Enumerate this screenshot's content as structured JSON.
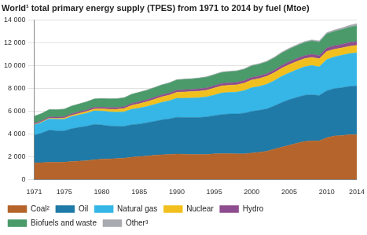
{
  "chart_data": {
    "type": "area",
    "title": "World¹ total primary energy supply (TPES) from 1971 to 2014 by fuel (Mtoe)",
    "stacked": true,
    "grid": true,
    "legend": "bottom",
    "x": [
      1971,
      1972,
      1973,
      1974,
      1975,
      1976,
      1977,
      1978,
      1979,
      1980,
      1981,
      1982,
      1983,
      1984,
      1985,
      1986,
      1987,
      1988,
      1989,
      1990,
      1991,
      1992,
      1993,
      1994,
      1995,
      1996,
      1997,
      1998,
      1999,
      2000,
      2001,
      2002,
      2003,
      2004,
      2005,
      2006,
      2007,
      2008,
      2009,
      2010,
      2011,
      2012,
      2013,
      2014
    ],
    "xlim": [
      1971,
      2014
    ],
    "xticks": [
      1971,
      1975,
      1980,
      1985,
      1990,
      1995,
      2000,
      2005,
      2010,
      2014
    ],
    "ylim": [
      0,
      14000
    ],
    "yticks": [
      0,
      {
        "value": 2000,
        "label": "2 000"
      },
      {
        "value": 4000,
        "label": "4 000"
      },
      {
        "value": 6000,
        "label": "6 000"
      },
      {
        "value": 8000,
        "label": "8 000"
      },
      {
        "value": 10000,
        "label": "10 000"
      },
      {
        "value": 12000,
        "label": "12 000"
      },
      {
        "value": 14000,
        "label": "14 000"
      }
    ],
    "series": [
      {
        "name": "Coal²",
        "color": "#b5652b",
        "values": [
          1440,
          1460,
          1500,
          1490,
          1510,
          1560,
          1600,
          1640,
          1720,
          1780,
          1790,
          1820,
          1860,
          1940,
          2000,
          2040,
          2110,
          2160,
          2190,
          2220,
          2200,
          2180,
          2180,
          2190,
          2230,
          2260,
          2250,
          2230,
          2240,
          2310,
          2380,
          2470,
          2650,
          2830,
          2990,
          3170,
          3320,
          3380,
          3380,
          3650,
          3810,
          3850,
          3920,
          3920
        ]
      },
      {
        "name": "Oil",
        "color": "#1f7aa8",
        "values": [
          2440,
          2600,
          2820,
          2770,
          2740,
          2880,
          2960,
          3030,
          3100,
          2990,
          2900,
          2830,
          2800,
          2850,
          2850,
          2930,
          2980,
          3060,
          3110,
          3230,
          3220,
          3250,
          3240,
          3290,
          3350,
          3420,
          3490,
          3510,
          3570,
          3660,
          3680,
          3710,
          3790,
          3910,
          4000,
          4020,
          4060,
          4040,
          3980,
          4130,
          4150,
          4190,
          4230,
          4280
        ]
      },
      {
        "name": "Natural gas",
        "color": "#35b6e6",
        "values": [
          895,
          940,
          990,
          1010,
          1020,
          1070,
          1100,
          1130,
          1190,
          1230,
          1240,
          1250,
          1270,
          1360,
          1400,
          1420,
          1480,
          1540,
          1600,
          1660,
          1700,
          1710,
          1750,
          1760,
          1820,
          1900,
          1890,
          1920,
          1980,
          2070,
          2100,
          2160,
          2220,
          2300,
          2360,
          2420,
          2500,
          2570,
          2520,
          2730,
          2780,
          2850,
          2880,
          2900
        ]
      },
      {
        "name": "Nuclear",
        "color": "#f2c01e",
        "values": [
          29,
          40,
          53,
          67,
          99,
          115,
          135,
          155,
          165,
          186,
          220,
          245,
          285,
          340,
          390,
          415,
          450,
          475,
          495,
          525,
          550,
          555,
          570,
          585,
          608,
          624,
          620,
          630,
          650,
          676,
          690,
          700,
          700,
          718,
          722,
          728,
          709,
          712,
          703,
          719,
          674,
          643,
          646,
          661
        ]
      },
      {
        "name": "Hydro",
        "color": "#8e4d8e",
        "values": [
          104,
          108,
          112,
          120,
          124,
          125,
          128,
          136,
          142,
          148,
          150,
          155,
          162,
          167,
          170,
          173,
          174,
          178,
          178,
          184,
          190,
          190,
          200,
          202,
          212,
          214,
          218,
          220,
          222,
          225,
          220,
          224,
          226,
          240,
          250,
          258,
          260,
          272,
          276,
          296,
          300,
          315,
          325,
          335
        ]
      },
      {
        "name": "Biofuels and waste",
        "color": "#4a9a6a",
        "values": [
          620,
          630,
          640,
          650,
          660,
          680,
          690,
          710,
          730,
          750,
          760,
          770,
          780,
          800,
          820,
          830,
          840,
          860,
          880,
          900,
          910,
          920,
          930,
          940,
          950,
          960,
          970,
          980,
          990,
          1020,
          1030,
          1050,
          1070,
          1090,
          1110,
          1130,
          1150,
          1170,
          1190,
          1240,
          1270,
          1300,
          1340,
          1380
        ]
      },
      {
        "name": "Other³",
        "color": "#a9a9b0",
        "values": [
          6,
          6,
          7,
          7,
          8,
          8,
          9,
          10,
          10,
          12,
          14,
          16,
          18,
          20,
          23,
          25,
          27,
          30,
          33,
          37,
          38,
          40,
          42,
          44,
          46,
          48,
          50,
          52,
          55,
          60,
          60,
          65,
          70,
          75,
          80,
          85,
          92,
          100,
          105,
          110,
          125,
          140,
          165,
          190
        ]
      }
    ]
  }
}
